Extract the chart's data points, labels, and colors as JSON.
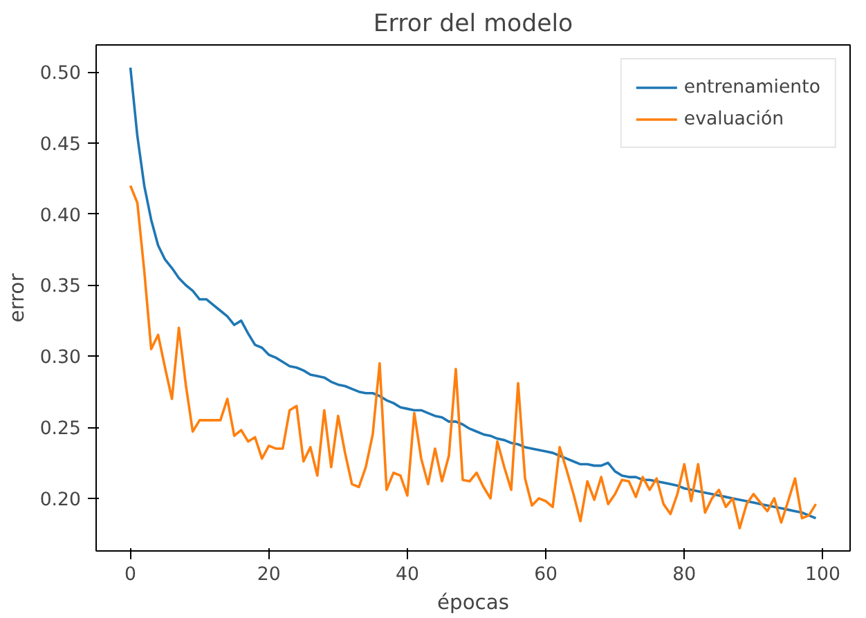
{
  "chart_data": {
    "type": "line",
    "title": "Error del modelo",
    "xlabel": "épocas",
    "ylabel": "error",
    "x": [
      0,
      1,
      2,
      3,
      4,
      5,
      6,
      7,
      8,
      9,
      10,
      11,
      12,
      13,
      14,
      15,
      16,
      17,
      18,
      19,
      20,
      21,
      22,
      23,
      24,
      25,
      26,
      27,
      28,
      29,
      30,
      31,
      32,
      33,
      34,
      35,
      36,
      37,
      38,
      39,
      40,
      41,
      42,
      43,
      44,
      45,
      46,
      47,
      48,
      49,
      50,
      51,
      52,
      53,
      54,
      55,
      56,
      57,
      58,
      59,
      60,
      61,
      62,
      63,
      64,
      65,
      66,
      67,
      68,
      69,
      70,
      71,
      72,
      73,
      74,
      75,
      76,
      77,
      78,
      79,
      80,
      81,
      82,
      83,
      84,
      85,
      86,
      87,
      88,
      89,
      90,
      91,
      92,
      93,
      94,
      95,
      96,
      97,
      98,
      99
    ],
    "series": [
      {
        "name": "entrenamiento",
        "color": "#1f77b4",
        "values": [
          0.503,
          0.455,
          0.42,
          0.396,
          0.378,
          0.368,
          0.362,
          0.355,
          0.35,
          0.346,
          0.34,
          0.34,
          0.336,
          0.332,
          0.328,
          0.322,
          0.325,
          0.316,
          0.308,
          0.306,
          0.301,
          0.299,
          0.296,
          0.293,
          0.292,
          0.29,
          0.287,
          0.286,
          0.285,
          0.282,
          0.28,
          0.279,
          0.277,
          0.275,
          0.274,
          0.274,
          0.272,
          0.269,
          0.267,
          0.264,
          0.263,
          0.262,
          0.262,
          0.26,
          0.258,
          0.257,
          0.254,
          0.254,
          0.252,
          0.249,
          0.247,
          0.245,
          0.244,
          0.242,
          0.241,
          0.239,
          0.238,
          0.236,
          0.235,
          0.234,
          0.233,
          0.232,
          0.23,
          0.228,
          0.226,
          0.224,
          0.224,
          0.223,
          0.223,
          0.225,
          0.219,
          0.216,
          0.215,
          0.215,
          0.213,
          0.213,
          0.212,
          0.211,
          0.21,
          0.209,
          0.207,
          0.206,
          0.205,
          0.204,
          0.203,
          0.202,
          0.201,
          0.2,
          0.199,
          0.198,
          0.197,
          0.196,
          0.195,
          0.194,
          0.193,
          0.192,
          0.191,
          0.19,
          0.188,
          0.186
        ]
      },
      {
        "name": "evaluación",
        "color": "#ff7f0e",
        "values": [
          0.42,
          0.408,
          0.36,
          0.305,
          0.315,
          0.292,
          0.27,
          0.32,
          0.28,
          0.247,
          0.255,
          0.255,
          0.255,
          0.255,
          0.27,
          0.244,
          0.248,
          0.24,
          0.243,
          0.228,
          0.237,
          0.235,
          0.235,
          0.262,
          0.265,
          0.226,
          0.236,
          0.216,
          0.262,
          0.222,
          0.258,
          0.232,
          0.21,
          0.208,
          0.222,
          0.245,
          0.295,
          0.206,
          0.218,
          0.216,
          0.202,
          0.26,
          0.228,
          0.21,
          0.235,
          0.212,
          0.23,
          0.291,
          0.213,
          0.212,
          0.218,
          0.208,
          0.2,
          0.24,
          0.222,
          0.206,
          0.281,
          0.214,
          0.195,
          0.2,
          0.198,
          0.194,
          0.236,
          0.22,
          0.203,
          0.184,
          0.212,
          0.199,
          0.215,
          0.196,
          0.203,
          0.213,
          0.212,
          0.201,
          0.215,
          0.206,
          0.214,
          0.196,
          0.189,
          0.203,
          0.224,
          0.198,
          0.224,
          0.19,
          0.2,
          0.206,
          0.194,
          0.2,
          0.179,
          0.196,
          0.203,
          0.197,
          0.191,
          0.2,
          0.183,
          0.198,
          0.214,
          0.186,
          0.188,
          0.196
        ]
      }
    ],
    "xlim": [
      -4.95,
      103.95
    ],
    "ylim": [
      0.163,
      0.519
    ],
    "xticks": [
      0,
      20,
      40,
      60,
      80,
      100
    ],
    "yticks": [
      {
        "value": 0.2,
        "label": "0.20"
      },
      {
        "value": 0.25,
        "label": "0.25"
      },
      {
        "value": 0.3,
        "label": "0.30"
      },
      {
        "value": 0.35,
        "label": "0.35"
      },
      {
        "value": 0.4,
        "label": "0.40"
      },
      {
        "value": 0.45,
        "label": "0.45"
      },
      {
        "value": 0.5,
        "label": "0.50"
      }
    ],
    "legend": "top right",
    "grid": false
  }
}
